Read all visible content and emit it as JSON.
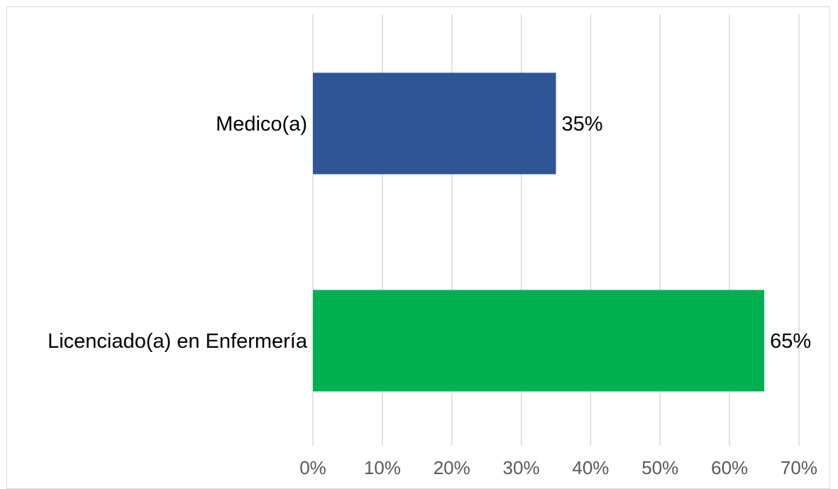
{
  "chart_data": {
    "type": "bar",
    "orientation": "horizontal",
    "categories": [
      "Medico(a)",
      "Licenciado(a) en Enfermería"
    ],
    "values": [
      35,
      65
    ],
    "value_labels": [
      "35%",
      "65%"
    ],
    "bar_colors": [
      "#2f5597",
      "#00b050"
    ],
    "xlim": [
      0,
      70
    ],
    "x_ticks": [
      0,
      10,
      20,
      30,
      40,
      50,
      60,
      70
    ],
    "x_tick_labels": [
      "0%",
      "10%",
      "20%",
      "30%",
      "40%",
      "50%",
      "60%",
      "70%"
    ],
    "grid": true,
    "grid_color": "#d9d9d9",
    "title": "",
    "xlabel": "",
    "ylabel": ""
  }
}
